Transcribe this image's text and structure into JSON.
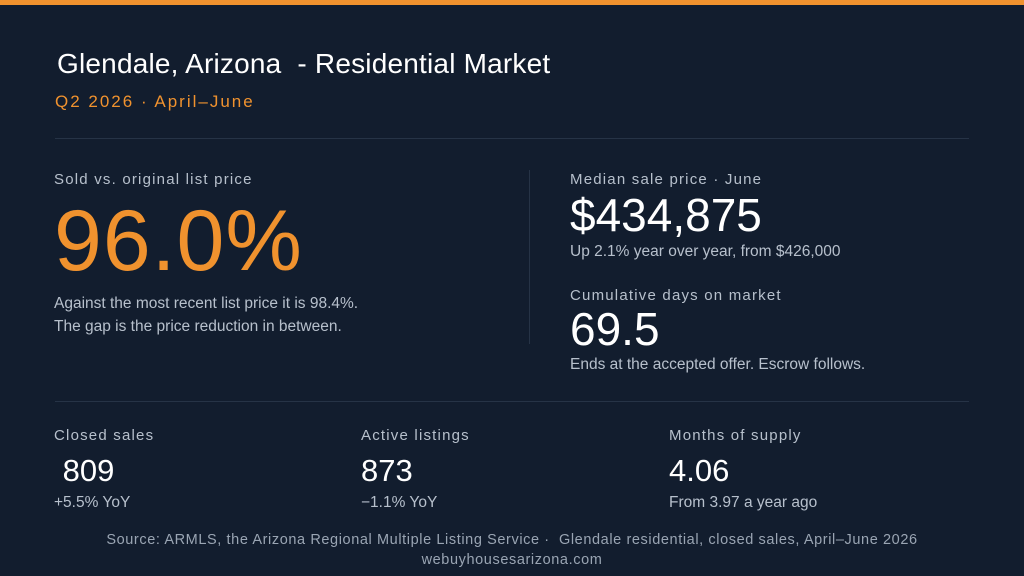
{
  "header": {
    "title": "Glendale, Arizona  - Residential Market",
    "subtitle": "Q2 2026 · April–June"
  },
  "hero": {
    "label": "Sold vs. original list price",
    "value": "96.0%",
    "note_line1": "Against the most recent list price it is 98.4%.",
    "note_line2": "The gap is the price reduction in between."
  },
  "median_price": {
    "label": "Median sale price · June",
    "value": "$434,875",
    "note": "Up 2.1% year over year, from $426,000"
  },
  "days_on_market": {
    "label": "Cumulative days on market",
    "value": "69.5",
    "note": "Ends at the accepted offer. Escrow follows."
  },
  "stats": [
    {
      "label": "Closed sales",
      "value": " 809",
      "note": "+5.5% YoY"
    },
    {
      "label": "Active listings",
      "value": "873",
      "note": "−1.1% YoY"
    },
    {
      "label": "Months of supply",
      "value": "4.06",
      "note": "From 3.97 a year ago"
    }
  ],
  "footer": {
    "source": "Source: ARMLS, the Arizona Regional Multiple Listing Service ·  Glendale residential, closed sales, April–June 2026",
    "site": "webuyhousesarizona.com"
  },
  "colors": {
    "background": "#121d2e",
    "accent": "#f0922e",
    "text_primary": "#ffffff",
    "text_secondary": "#b7c0cc"
  }
}
